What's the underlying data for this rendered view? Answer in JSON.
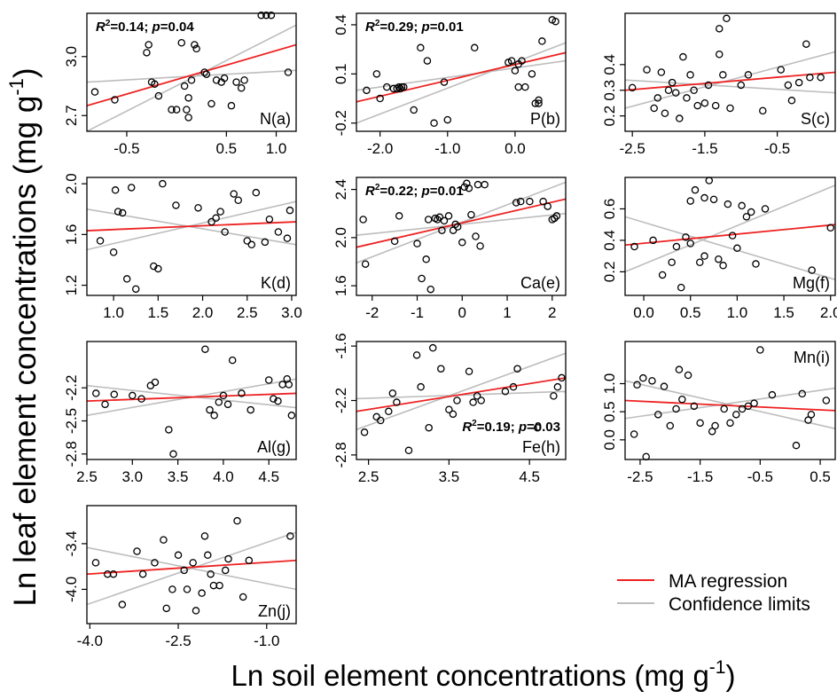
{
  "figure": {
    "ylabel": "Ln leaf element concentrations (mg g⁻¹)",
    "xlabel": "Ln soil element concentrations (mg g⁻¹)",
    "ylabel_main": "Ln leaf element concentrations (mg g",
    "xlabel_main": "Ln soil element concentrations (mg g",
    "unit_exp": "-1",
    "unit_close": ")"
  },
  "legend": {
    "placement": "bottom-right",
    "items": [
      {
        "label": "MA regression",
        "color": "#ee2222"
      },
      {
        "label": "Confidence limits",
        "color": "#bbbbbb"
      }
    ]
  },
  "colors": {
    "regression": "#ee2222",
    "confidence": "#bdbdbd",
    "points": "#000000",
    "axes": "#000000"
  },
  "chart_data": [
    {
      "type": "scatter",
      "panel_label": "N(a)",
      "label_pos": "bottom-right",
      "stat": {
        "r2": "0.14",
        "p": "0.04",
        "pos": "top-left"
      },
      "xlim": [
        -0.9,
        1.2
      ],
      "ylim": [
        2.62,
        3.22
      ],
      "xticks": [
        -0.5,
        0.5,
        1.0
      ],
      "xtick_labels": [
        "-0.5",
        "0.5",
        "1.0"
      ],
      "yticks": [
        2.7,
        3.0
      ],
      "ytick_labels": [
        "2.7",
        "3.0"
      ],
      "x": [
        -0.82,
        -0.62,
        -0.3,
        -0.28,
        -0.25,
        -0.22,
        -0.18,
        -0.05,
        0.0,
        0.05,
        0.08,
        0.12,
        0.18,
        0.2,
        0.15,
        0.1,
        0.12,
        0.28,
        0.3,
        0.35,
        0.4,
        0.45,
        0.48,
        0.55,
        0.6,
        0.65,
        0.68,
        0.85,
        0.9,
        0.95,
        1.12
      ],
      "y": [
        2.82,
        2.78,
        3.02,
        3.06,
        2.87,
        2.86,
        2.8,
        2.73,
        2.73,
        3.07,
        2.85,
        2.79,
        3.06,
        3.04,
        2.88,
        2.73,
        2.69,
        2.92,
        2.91,
        2.76,
        2.88,
        2.87,
        2.89,
        2.75,
        2.87,
        2.84,
        2.88,
        3.21,
        3.21,
        3.21,
        2.92
      ],
      "ma_line": [
        [
          -0.9,
          2.75
        ],
        [
          1.2,
          3.06
        ]
      ],
      "confidence_lines": [
        [
          [
            -0.9,
            2.62
          ],
          [
            1.2,
            3.16
          ]
        ],
        [
          [
            -0.9,
            2.87
          ],
          [
            1.2,
            2.93
          ]
        ]
      ]
    },
    {
      "type": "scatter",
      "panel_label": "P(b)",
      "label_pos": "bottom-right",
      "stat": {
        "r2": "0.29",
        "p": "0.01",
        "pos": "top-left"
      },
      "xlim": [
        -2.35,
        0.75
      ],
      "ylim": [
        -0.25,
        0.47
      ],
      "xticks": [
        -2.0,
        -1.0,
        0.0
      ],
      "xtick_labels": [
        "-2.0",
        "-1.0",
        "0.0"
      ],
      "yticks": [
        -0.2,
        0.1,
        0.4
      ],
      "ytick_labels": [
        "-0.2",
        "0.1",
        "0.4"
      ],
      "x": [
        -2.2,
        -2.05,
        -2.0,
        -1.9,
        -1.8,
        -1.75,
        -1.72,
        -1.7,
        -1.68,
        -1.65,
        -1.5,
        -1.4,
        -1.3,
        -1.2,
        -1.05,
        -1.0,
        -0.6,
        -0.1,
        -0.05,
        0.0,
        0.05,
        0.05,
        0.1,
        0.15,
        0.25,
        0.3,
        0.35,
        0.35,
        0.4,
        0.55,
        0.6
      ],
      "y": [
        0.0,
        0.1,
        -0.05,
        0.02,
        0.01,
        0.01,
        0.02,
        0.01,
        0.02,
        0.02,
        -0.12,
        0.26,
        0.18,
        -0.2,
        0.05,
        -0.18,
        0.26,
        0.17,
        0.18,
        0.12,
        0.16,
        0.02,
        0.18,
        0.02,
        0.1,
        -0.08,
        -0.06,
        -0.08,
        0.3,
        0.43,
        0.42
      ],
      "ma_line": [
        [
          -2.35,
          -0.07
        ],
        [
          0.75,
          0.23
        ]
      ],
      "confidence_lines": [
        [
          [
            -2.35,
            -0.2
          ],
          [
            0.75,
            0.29
          ]
        ],
        [
          [
            -2.35,
            0.0
          ],
          [
            0.75,
            0.18
          ]
        ]
      ]
    },
    {
      "type": "scatter",
      "panel_label": "S(c)",
      "label_pos": "bottom-right",
      "stat": null,
      "xlim": [
        -2.6,
        0.3
      ],
      "ylim": [
        0.14,
        0.6
      ],
      "xticks": [
        -2.5,
        -1.5,
        -0.5
      ],
      "xtick_labels": [
        "-2.5",
        "-1.5",
        "-0.5"
      ],
      "yticks": [
        0.2,
        0.3,
        0.4
      ],
      "ytick_labels": [
        "0.2",
        "0.3",
        "0.4"
      ],
      "x": [
        -2.5,
        -2.3,
        -2.2,
        -2.15,
        -2.1,
        -2.05,
        -2.0,
        -1.95,
        -1.9,
        -1.85,
        -1.8,
        -1.75,
        -1.7,
        -1.65,
        -1.6,
        -1.5,
        -1.45,
        -1.35,
        -1.3,
        -1.3,
        -1.25,
        -1.2,
        -1.15,
        -1.0,
        -0.9,
        -0.7,
        -0.45,
        -0.35,
        -0.3,
        -0.2,
        -0.1,
        -0.05,
        0.1
      ],
      "y": [
        0.31,
        0.38,
        0.23,
        0.27,
        0.37,
        0.21,
        0.3,
        0.33,
        0.29,
        0.19,
        0.43,
        0.27,
        0.36,
        0.3,
        0.24,
        0.25,
        0.32,
        0.24,
        0.54,
        0.44,
        0.36,
        0.58,
        0.23,
        0.32,
        0.36,
        0.22,
        0.38,
        0.32,
        0.26,
        0.33,
        0.48,
        0.35,
        0.35
      ],
      "ma_line": [
        [
          -2.6,
          0.3
        ],
        [
          0.3,
          0.37
        ]
      ],
      "confidence_lines": [
        [
          [
            -2.6,
            0.23
          ],
          [
            0.3,
            0.45
          ]
        ],
        [
          [
            -2.6,
            0.34
          ],
          [
            0.3,
            0.29
          ]
        ]
      ]
    },
    {
      "type": "scatter",
      "panel_label": "K(d)",
      "label_pos": "bottom-right",
      "stat": null,
      "xlim": [
        0.7,
        3.05
      ],
      "ylim": [
        1.12,
        2.05
      ],
      "xticks": [
        1.0,
        1.5,
        2.0,
        2.5,
        3.0
      ],
      "xtick_labels": [
        "1.0",
        "1.5",
        "2.0",
        "2.5",
        "3.0"
      ],
      "yticks": [
        1.2,
        1.6,
        2.0
      ],
      "ytick_labels": [
        "1.2",
        "1.6",
        "2.0"
      ],
      "x": [
        0.85,
        1.0,
        1.02,
        1.05,
        1.1,
        1.15,
        1.2,
        1.25,
        1.45,
        1.5,
        1.55,
        1.7,
        1.95,
        2.1,
        2.15,
        2.2,
        2.25,
        2.35,
        2.4,
        2.5,
        2.55,
        2.6,
        2.7,
        2.75,
        2.85,
        2.95,
        2.98
      ],
      "y": [
        1.55,
        1.46,
        1.95,
        1.78,
        1.77,
        1.25,
        1.97,
        1.17,
        1.35,
        1.33,
        2.0,
        1.83,
        1.81,
        1.7,
        1.73,
        1.78,
        1.62,
        1.92,
        1.87,
        1.55,
        1.52,
        1.93,
        1.54,
        1.72,
        1.62,
        1.57,
        1.79
      ],
      "ma_line": [
        [
          0.7,
          1.63
        ],
        [
          3.05,
          1.7
        ]
      ],
      "confidence_lines": [
        [
          [
            0.7,
            1.48
          ],
          [
            3.05,
            1.86
          ]
        ],
        [
          [
            0.7,
            1.8
          ],
          [
            3.05,
            1.52
          ]
        ]
      ]
    },
    {
      "type": "scatter",
      "panel_label": "Ca(e)",
      "label_pos": "bottom-right",
      "stat": {
        "r2": "0.22",
        "p": "0.01",
        "pos": "top-left"
      },
      "xlim": [
        -2.35,
        2.3
      ],
      "ylim": [
        1.52,
        2.5
      ],
      "xticks": [
        -2,
        -1,
        0,
        1,
        2
      ],
      "xtick_labels": [
        "-2",
        "-1",
        "0",
        "1",
        "2"
      ],
      "yticks": [
        1.6,
        2.0,
        2.4
      ],
      "ytick_labels": [
        "1.6",
        "2.0",
        "2.4"
      ],
      "x": [
        -2.2,
        -2.15,
        -1.5,
        -1.4,
        -1.0,
        -0.9,
        -0.8,
        -0.75,
        -0.7,
        -0.6,
        -0.55,
        -0.5,
        -0.45,
        -0.4,
        -0.3,
        -0.2,
        -0.15,
        -0.1,
        0.0,
        0.05,
        0.1,
        0.15,
        0.2,
        0.3,
        0.35,
        0.4,
        0.5,
        1.2,
        1.3,
        1.5,
        1.8,
        1.9,
        2.0,
        2.05,
        2.1
      ],
      "y": [
        2.15,
        1.78,
        1.97,
        2.18,
        1.95,
        1.66,
        1.82,
        2.15,
        1.57,
        2.16,
        2.15,
        2.17,
        2.06,
        2.14,
        2.18,
        2.06,
        2.11,
        2.09,
        1.96,
        2.42,
        2.45,
        2.41,
        2.19,
        2.01,
        2.44,
        1.93,
        2.44,
        2.29,
        2.3,
        2.3,
        2.3,
        2.26,
        2.15,
        2.16,
        2.18
      ],
      "ma_line": [
        [
          -2.35,
          1.92
        ],
        [
          2.3,
          2.32
        ]
      ],
      "confidence_lines": [
        [
          [
            -2.35,
            1.79
          ],
          [
            2.3,
            2.46
          ]
        ],
        [
          [
            -2.35,
            2.02
          ],
          [
            2.3,
            2.2
          ]
        ]
      ]
    },
    {
      "type": "scatter",
      "panel_label": "Mg(f)",
      "label_pos": "bottom-right",
      "stat": null,
      "xlim": [
        -0.2,
        2.05
      ],
      "ylim": [
        0.05,
        0.8
      ],
      "xticks": [
        0.0,
        0.5,
        1.0,
        1.5,
        2.0
      ],
      "xtick_labels": [
        "0.0",
        "0.5",
        "1.0",
        "1.5",
        "2.0"
      ],
      "yticks": [
        0.2,
        0.4,
        0.6
      ],
      "ytick_labels": [
        "0.2",
        "0.4",
        "0.6"
      ],
      "x": [
        -0.1,
        0.1,
        0.2,
        0.3,
        0.35,
        0.4,
        0.45,
        0.5,
        0.5,
        0.55,
        0.6,
        0.65,
        0.65,
        0.7,
        0.75,
        0.8,
        0.85,
        0.9,
        0.95,
        1.0,
        1.05,
        1.1,
        1.15,
        1.2,
        1.3,
        1.8,
        2.0
      ],
      "y": [
        0.36,
        0.4,
        0.18,
        0.26,
        0.36,
        0.1,
        0.42,
        0.65,
        0.38,
        0.72,
        0.26,
        0.67,
        0.3,
        0.78,
        0.66,
        0.28,
        0.24,
        0.63,
        0.43,
        0.35,
        0.62,
        0.55,
        0.58,
        0.25,
        0.6,
        0.21,
        0.48
      ],
      "ma_line": [
        [
          -0.2,
          0.37
        ],
        [
          2.05,
          0.5
        ]
      ],
      "confidence_lines": [
        [
          [
            -0.2,
            0.2
          ],
          [
            2.05,
            0.75
          ]
        ],
        [
          [
            -0.2,
            0.55
          ],
          [
            2.05,
            0.15
          ]
        ]
      ]
    },
    {
      "type": "scatter",
      "panel_label": "Al(g)",
      "label_pos": "bottom-right",
      "stat": null,
      "xlim": [
        2.5,
        4.8
      ],
      "ylim": [
        -2.85,
        -1.78
      ],
      "xticks": [
        2.5,
        3.0,
        3.5,
        4.0,
        4.5
      ],
      "xtick_labels": [
        "2.5",
        "3.0",
        "3.5",
        "4.0",
        "4.5"
      ],
      "yticks": [
        -2.8,
        -2.5,
        -2.2
      ],
      "ytick_labels": [
        "-2.8",
        "-2.5",
        "-2.2"
      ],
      "x": [
        2.6,
        2.7,
        2.8,
        3.0,
        3.1,
        3.2,
        3.25,
        3.4,
        3.45,
        3.8,
        3.85,
        3.9,
        3.95,
        4.0,
        4.05,
        4.1,
        4.2,
        4.3,
        4.5,
        4.55,
        4.6,
        4.65,
        4.7,
        4.72,
        4.75
      ],
      "y": [
        -2.25,
        -2.35,
        -2.26,
        -2.27,
        -2.3,
        -2.18,
        -2.15,
        -2.58,
        -2.8,
        -1.85,
        -2.4,
        -2.45,
        -2.33,
        -2.27,
        -2.35,
        -1.95,
        -2.25,
        -2.4,
        -2.13,
        -2.3,
        -2.32,
        -2.17,
        -2.12,
        -2.17,
        -2.45
      ],
      "ma_line": [
        [
          2.5,
          -2.32
        ],
        [
          4.8,
          -2.25
        ]
      ],
      "confidence_lines": [
        [
          [
            2.5,
            -2.45
          ],
          [
            4.8,
            -2.12
          ]
        ],
        [
          [
            2.5,
            -2.18
          ],
          [
            4.8,
            -2.38
          ]
        ]
      ]
    },
    {
      "type": "scatter",
      "panel_label": "Fe(h)",
      "label_pos": "bottom-right",
      "stat": {
        "r2": "0.19",
        "p": "0.03",
        "pos": "bottom-right"
      },
      "xlim": [
        2.35,
        4.95
      ],
      "ylim": [
        -2.85,
        -1.55
      ],
      "xticks": [
        2.5,
        3.5,
        4.5
      ],
      "xtick_labels": [
        "2.5",
        "3.5",
        "4.5"
      ],
      "yticks": [
        -2.8,
        -2.2,
        -1.6
      ],
      "ytick_labels": [
        "-2.8",
        "-2.2",
        "-1.6"
      ],
      "x": [
        2.45,
        2.6,
        2.65,
        2.75,
        2.8,
        2.85,
        3.0,
        3.1,
        3.15,
        3.25,
        3.3,
        3.4,
        3.5,
        3.55,
        3.6,
        3.75,
        3.8,
        3.85,
        3.9,
        4.2,
        4.3,
        4.35,
        4.6,
        4.8,
        4.85,
        4.9
      ],
      "y": [
        -2.55,
        -2.38,
        -2.42,
        -2.32,
        -2.12,
        -2.22,
        -2.75,
        -1.7,
        -2.05,
        -2.5,
        -1.62,
        -1.85,
        -2.3,
        -2.35,
        -2.2,
        -1.88,
        -2.22,
        -2.15,
        -2.2,
        -2.1,
        -2.05,
        -1.85,
        -2.5,
        -2.15,
        -2.05,
        -1.95
      ],
      "ma_line": [
        [
          2.35,
          -2.32
        ],
        [
          4.95,
          -1.95
        ]
      ],
      "confidence_lines": [
        [
          [
            2.35,
            -2.52
          ],
          [
            4.95,
            -1.68
          ]
        ],
        [
          [
            2.35,
            -2.18
          ],
          [
            4.95,
            -2.1
          ]
        ]
      ]
    },
    {
      "type": "scatter",
      "panel_label": "Mn(i)",
      "label_pos": "top-right",
      "stat": null,
      "xlim": [
        -2.75,
        0.75
      ],
      "ylim": [
        -0.35,
        1.75
      ],
      "xticks": [
        -2.5,
        -1.5,
        -0.5,
        0.5
      ],
      "xtick_labels": [
        "-2.5",
        "-1.5",
        "-0.5",
        "0.5"
      ],
      "yticks": [
        0.0,
        0.5,
        1.0
      ],
      "ytick_labels": [
        "0.0",
        "0.5",
        "1.0"
      ],
      "x": [
        -2.6,
        -2.55,
        -2.45,
        -2.4,
        -2.3,
        -2.2,
        -2.1,
        -2.0,
        -1.9,
        -1.85,
        -1.8,
        -1.7,
        -1.6,
        -1.5,
        -1.3,
        -1.25,
        -1.1,
        -1.0,
        -0.9,
        -0.8,
        -0.7,
        -0.6,
        -0.5,
        -0.3,
        0.1,
        0.2,
        0.3,
        0.35,
        0.6
      ],
      "y": [
        0.1,
        0.98,
        1.1,
        -0.3,
        1.05,
        0.45,
        0.95,
        0.25,
        0.55,
        1.25,
        0.72,
        1.15,
        0.6,
        0.3,
        0.15,
        0.25,
        0.55,
        0.3,
        0.45,
        0.55,
        0.6,
        0.65,
        1.6,
        0.8,
        -0.1,
        0.82,
        0.35,
        0.45,
        0.7
      ],
      "ma_line": [
        [
          -2.75,
          0.7
        ],
        [
          0.75,
          0.52
        ]
      ],
      "confidence_lines": [
        [
          [
            -2.75,
            1.05
          ],
          [
            0.75,
            0.2
          ]
        ],
        [
          [
            -2.75,
            0.38
          ],
          [
            0.75,
            0.92
          ]
        ]
      ]
    },
    {
      "type": "scatter",
      "panel_label": "Zn(j)",
      "label_pos": "bottom-right",
      "stat": null,
      "xlim": [
        -4.05,
        -0.5
      ],
      "ylim": [
        -4.45,
        -2.9
      ],
      "xticks": [
        -4.0,
        -2.5,
        -1.0
      ],
      "xtick_labels": [
        "-4.0",
        "-2.5",
        "-1.0"
      ],
      "yticks": [
        -4.0,
        -3.4
      ],
      "ytick_labels": [
        "-4.0",
        "-3.4"
      ],
      "x": [
        -3.9,
        -3.7,
        -3.6,
        -3.45,
        -3.2,
        -3.1,
        -2.9,
        -2.75,
        -2.7,
        -2.6,
        -2.5,
        -2.4,
        -2.35,
        -2.25,
        -2.2,
        -2.1,
        -2.05,
        -2.0,
        -1.95,
        -1.9,
        -1.8,
        -1.7,
        -1.65,
        -1.5,
        -1.4,
        -1.3,
        -0.6
      ],
      "y": [
        -3.65,
        -3.8,
        -3.8,
        -4.2,
        -3.5,
        -3.8,
        -3.65,
        -3.35,
        -4.25,
        -4.0,
        -3.55,
        -3.75,
        -4.0,
        -3.65,
        -4.28,
        -4.05,
        -3.3,
        -3.55,
        -3.8,
        -3.95,
        -3.95,
        -3.75,
        -3.6,
        -3.1,
        -4.1,
        -3.62,
        -3.3
      ],
      "ma_line": [
        [
          -4.05,
          -3.8
        ],
        [
          -0.5,
          -3.62
        ]
      ],
      "confidence_lines": [
        [
          [
            -4.05,
            -4.2
          ],
          [
            -0.5,
            -3.25
          ]
        ],
        [
          [
            -4.05,
            -3.45
          ],
          [
            -0.5,
            -4.0
          ]
        ]
      ]
    }
  ]
}
